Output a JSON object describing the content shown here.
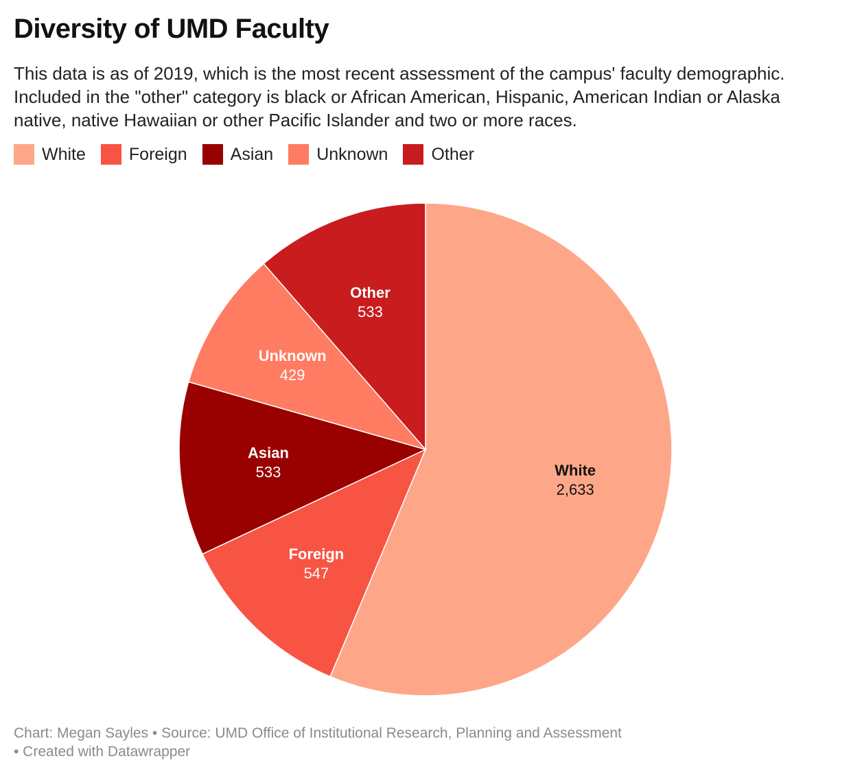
{
  "title": "Diversity of UMD Faculty",
  "subtitle": "This data is as of 2019, which is the most recent assessment of the campus' faculty demographic. Included in the \"other\" category is black or African American, Hispanic, American Indian or Alaska native, native Hawaiian or other Pacific Islander and two or more races.",
  "footer": {
    "line1": "Chart: Megan Sayles • Source: UMD Office of Institutional Research, Planning and Assessment",
    "line2": "• Created with Datawrapper"
  },
  "chart_data": {
    "type": "pie",
    "categories": [
      "White",
      "Foreign",
      "Asian",
      "Unknown",
      "Other"
    ],
    "values": [
      2633,
      547,
      533,
      429,
      533
    ],
    "value_labels": [
      "2,633",
      "547",
      "533",
      "429",
      "533"
    ],
    "colors": [
      "#fea788",
      "#f75443",
      "#990000",
      "#ff7b61",
      "#c81c1f"
    ],
    "label_colors": [
      "#111111",
      "#ffffff",
      "#ffffff",
      "#ffffff",
      "#ffffff"
    ],
    "legend_placement": "top-left",
    "start_angle": "12 o'clock",
    "direction": "clockwise"
  }
}
